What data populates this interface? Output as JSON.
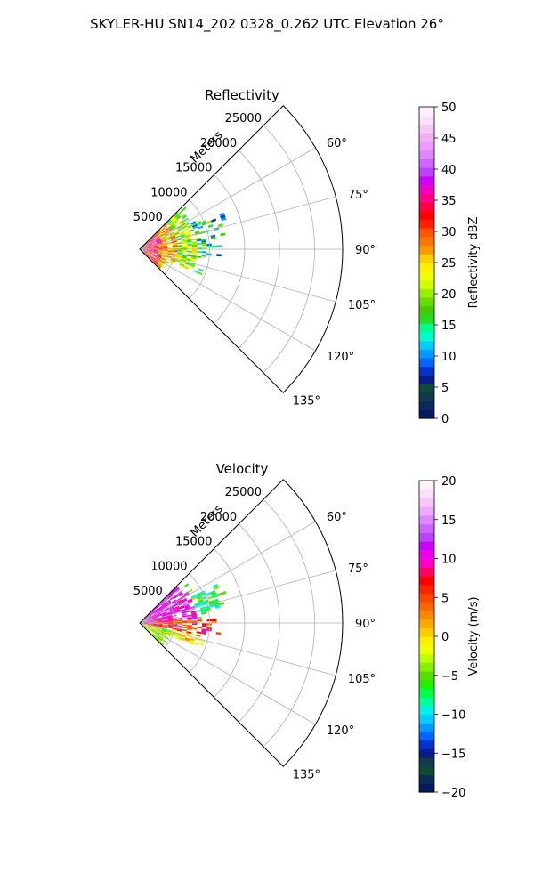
{
  "figure": {
    "suptitle": "SKYLER-HU  SN14_202  0328_0.262 UTC Elevation 26°"
  },
  "chart_data": [
    {
      "type": "heatmap",
      "subtype": "polar-ppi-sector",
      "title": "Reflectivity",
      "range_axis_label": "Meters",
      "range_max": 29000,
      "range_ticks": [
        5000,
        10000,
        15000,
        20000,
        25000
      ],
      "range_tick_labels": [
        "5000",
        "10000",
        "15000",
        "20000",
        "25000"
      ],
      "azimuth_range_deg": [
        45,
        135
      ],
      "azimuth_ticks": [
        60,
        75,
        90,
        105,
        120,
        135
      ],
      "azimuth_tick_labels": [
        "60°",
        "75°",
        "90°",
        "105°",
        "120°",
        "135°"
      ],
      "grid": true,
      "colorbar": {
        "label": "Reflectivity dBZ",
        "min": 0,
        "max": 50,
        "ticks": [
          0,
          5,
          10,
          15,
          20,
          25,
          30,
          35,
          40,
          45,
          50
        ],
        "tick_labels": [
          "0",
          "5",
          "10",
          "15",
          "20",
          "25",
          "30",
          "35",
          "40",
          "45",
          "50"
        ],
        "colors": [
          "#071a5e",
          "#0a2a5a",
          "#123a4a",
          "#0d4a3a",
          "#0a1c8c",
          "#0033cc",
          "#0066ff",
          "#0099ff",
          "#00ccff",
          "#00ffcc",
          "#00ff88",
          "#22dd22",
          "#44cc00",
          "#66dd00",
          "#99ee00",
          "#ccff00",
          "#eeff00",
          "#ffee00",
          "#ffcc00",
          "#ff9900",
          "#ff7700",
          "#ff5500",
          "#ff2200",
          "#ff0000",
          "#ff0044",
          "#ff0088",
          "#ee00cc",
          "#cc00ff",
          "#bb44ff",
          "#cc66ff",
          "#dd88ff",
          "#ee99ff",
          "#f0b0f0",
          "#f5c8f5",
          "#fae0fa",
          "#fff0fb"
        ]
      },
      "echo_summary": "returns concentrated within ~10000 m, values mostly 10–30 dBZ with peaks near 40 dBZ close to the radar"
    },
    {
      "type": "heatmap",
      "subtype": "polar-ppi-sector",
      "title": "Velocity",
      "range_axis_label": "Meters",
      "range_max": 29000,
      "range_ticks": [
        5000,
        10000,
        15000,
        20000,
        25000
      ],
      "range_tick_labels": [
        "5000",
        "10000",
        "15000",
        "20000",
        "25000"
      ],
      "azimuth_range_deg": [
        45,
        135
      ],
      "azimuth_ticks": [
        60,
        75,
        90,
        105,
        120,
        135
      ],
      "azimuth_tick_labels": [
        "60°",
        "75°",
        "90°",
        "105°",
        "120°",
        "135°"
      ],
      "grid": true,
      "colorbar": {
        "label": "Velocity (m/s)",
        "min": -20,
        "max": 20,
        "ticks": [
          -20,
          -15,
          -10,
          -5,
          0,
          5,
          10,
          15,
          20
        ],
        "tick_labels": [
          "−20",
          "−15",
          "−10",
          "−5",
          "0",
          "5",
          "10",
          "15",
          "20"
        ],
        "colors": [
          "#071a5e",
          "#0a2a5a",
          "#0d4a3a",
          "#123a4a",
          "#0a1c8c",
          "#0033cc",
          "#0066ff",
          "#0099ff",
          "#00ccff",
          "#00eeee",
          "#00ff99",
          "#00ff44",
          "#22ee00",
          "#55dd00",
          "#88ee00",
          "#bbff00",
          "#eeff00",
          "#ffee00",
          "#ffcc00",
          "#ffaa00",
          "#ff8800",
          "#ff6600",
          "#ff4400",
          "#ff2200",
          "#ff0000",
          "#ff0066",
          "#ff00cc",
          "#ee00ee",
          "#cc00ff",
          "#bb44ff",
          "#cc66ff",
          "#dd88ff",
          "#eeaaff",
          "#f5c8f5",
          "#fae0fa",
          "#fff0fb"
        ]
      },
      "echo_summary": "positive (10–15 m/s, magenta) in the northern part of the sector, negative to near-zero (green/yellow) in the southern part"
    }
  ]
}
